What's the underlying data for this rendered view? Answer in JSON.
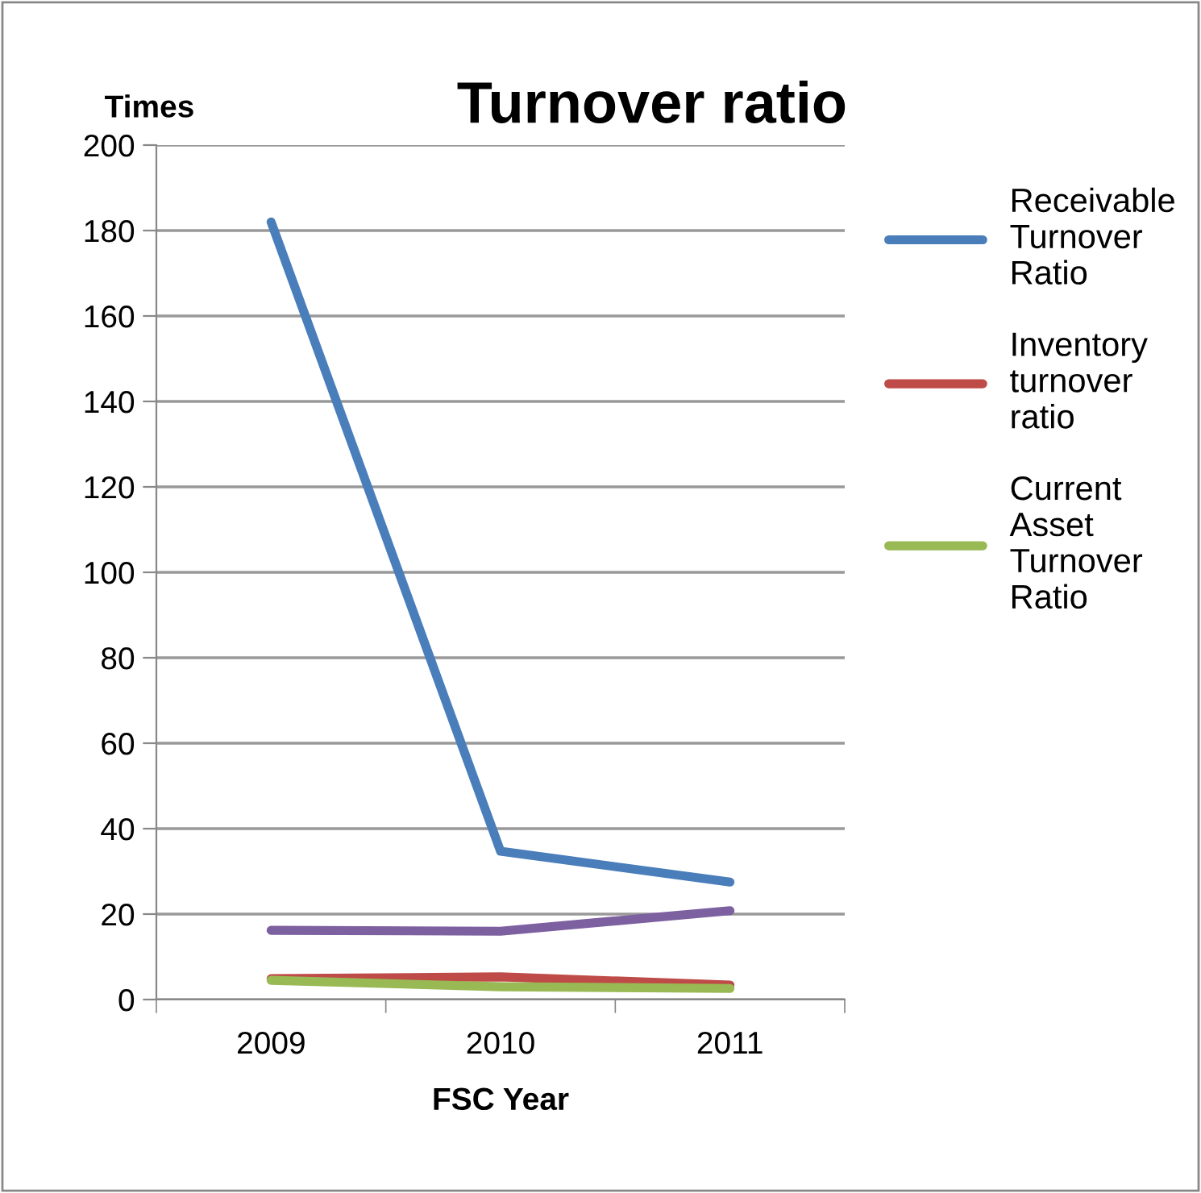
{
  "chart_data": {
    "type": "line",
    "title": "Turnover ratio",
    "ylabel": "Times",
    "xlabel": "FSC Year",
    "categories": [
      "2009",
      "2010",
      "2011"
    ],
    "series": [
      {
        "name": "Receivable Turnover Ratio",
        "color": "#4a7ebb",
        "values": [
          182,
          34.7,
          27.5
        ]
      },
      {
        "name": "Inventory turnover ratio",
        "color": "#be4b48",
        "values": [
          4.9,
          5.3,
          3.4
        ]
      },
      {
        "name": "Current Asset Turnover Ratio",
        "color": "#98b954",
        "values": [
          4.5,
          3.0,
          2.6
        ]
      },
      {
        "color": "#7d60a0",
        "values": [
          16.2,
          16.0,
          20.8
        ]
      }
    ],
    "ylim": [
      0,
      200
    ],
    "yticks": [
      0,
      20,
      40,
      60,
      80,
      100,
      120,
      140,
      160,
      180,
      200
    ],
    "grid": "y",
    "legend": "right",
    "marker": "none",
    "line_style": "solid"
  }
}
